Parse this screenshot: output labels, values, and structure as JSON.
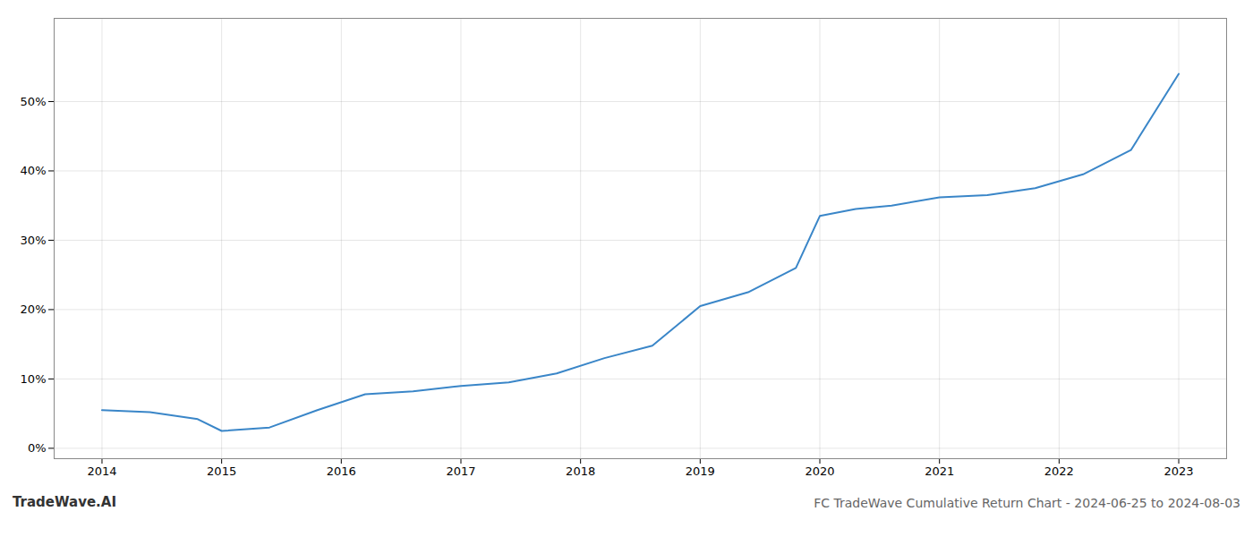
{
  "chart_data": {
    "type": "line",
    "title": "FC TradeWave Cumulative Return Chart - 2024-06-25 to 2024-08-03",
    "annotations": [
      "TradeWave.AI"
    ],
    "x": [
      2014.0,
      2014.4,
      2014.8,
      2015.0,
      2015.4,
      2015.8,
      2016.2,
      2016.6,
      2017.0,
      2017.4,
      2017.8,
      2018.2,
      2018.6,
      2019.0,
      2019.4,
      2019.8,
      2020.0,
      2020.3,
      2020.6,
      2021.0,
      2021.4,
      2021.8,
      2022.2,
      2022.6,
      2023.0
    ],
    "values": [
      0.055,
      0.052,
      0.042,
      0.025,
      0.03,
      0.055,
      0.078,
      0.082,
      0.09,
      0.095,
      0.108,
      0.13,
      0.148,
      0.205,
      0.225,
      0.26,
      0.335,
      0.345,
      0.35,
      0.362,
      0.365,
      0.375,
      0.395,
      0.43,
      0.54
    ],
    "color": "#3a86c8",
    "xlim": [
      2013.6,
      2023.4
    ],
    "xticks": [
      2014,
      2015,
      2016,
      2017,
      2018,
      2019,
      2020,
      2021,
      2022,
      2023
    ],
    "ylim": [
      -0.015,
      0.62
    ],
    "yticks": [
      {
        "value": 0.0,
        "label": "0%"
      },
      {
        "value": 0.1,
        "label": "10%"
      },
      {
        "value": 0.2,
        "label": "20%"
      },
      {
        "value": 0.3,
        "label": "30%"
      },
      {
        "value": 0.4,
        "label": "40%"
      },
      {
        "value": 0.5,
        "label": "50%"
      }
    ],
    "grid": true
  }
}
